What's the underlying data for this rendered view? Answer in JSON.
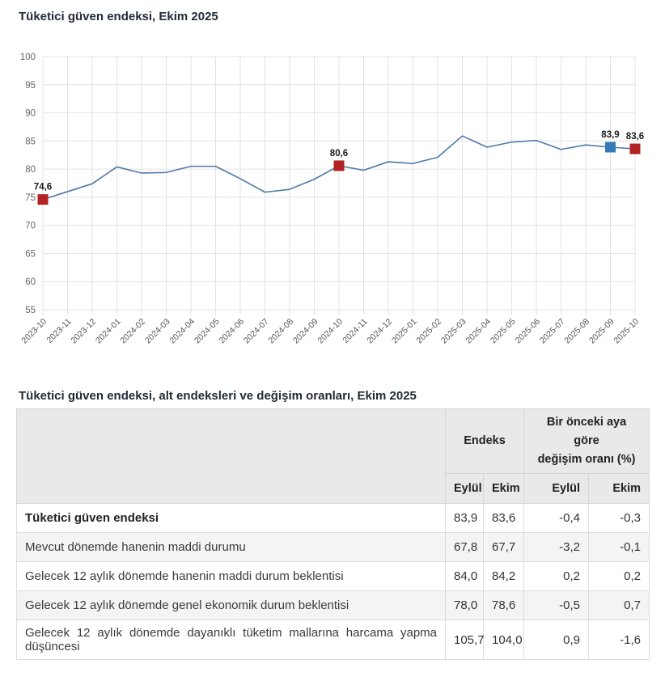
{
  "page": {
    "chart_title": "Tüketici güven endeksi, Ekim 2025",
    "table_title": "Tüketici güven endeksi, alt endeksleri ve değişim oranları, Ekim 2025"
  },
  "chart_data": {
    "type": "line",
    "title": "Tüketici güven endeksi, Ekim 2025",
    "x": [
      "2023-10",
      "2023-11",
      "2023-12",
      "2024-01",
      "2024-02",
      "2024-03",
      "2024-04",
      "2024-05",
      "2024-06",
      "2024-07",
      "2024-08",
      "2024-09",
      "2024-10",
      "2024-11",
      "2024-12",
      "2025-01",
      "2025-02",
      "2025-03",
      "2025-04",
      "2025-05",
      "2025-06",
      "2025-07",
      "2025-08",
      "2025-09",
      "2025-10"
    ],
    "series": [
      {
        "name": "Tüketici güven endeksi",
        "color": "#4e79a7",
        "values": [
          74.6,
          76.0,
          77.4,
          80.4,
          79.3,
          79.4,
          80.5,
          80.5,
          78.3,
          75.9,
          76.4,
          78.2,
          80.6,
          79.8,
          81.3,
          81.0,
          82.1,
          85.9,
          83.9,
          84.8,
          85.1,
          83.5,
          84.3,
          83.9,
          83.6
        ]
      }
    ],
    "ylim": [
      55,
      100
    ],
    "ytick_step": 5,
    "grid": true,
    "legend": false,
    "highlights": [
      {
        "x": "2023-10",
        "value": 74.6,
        "label": "74,6",
        "marker": "square",
        "color": "#b22222"
      },
      {
        "x": "2024-10",
        "value": 80.6,
        "label": "80,6",
        "marker": "square",
        "color": "#b22222"
      },
      {
        "x": "2025-09",
        "value": 83.9,
        "label": "83,9",
        "marker": "square",
        "color": "#337ab7"
      },
      {
        "x": "2025-10",
        "value": 83.6,
        "label": "83,6",
        "marker": "square",
        "color": "#b22222"
      }
    ]
  },
  "table": {
    "title": "Tüketici güven endeksi, alt endeksleri ve değişim oranları, Ekim 2025",
    "column_groups": [
      {
        "label": "Endeks",
        "span": 2
      },
      {
        "label": "Bir önceki aya\ngöre\ndeğişim oranı (%)",
        "span": 2
      }
    ],
    "sub_headers": [
      "Eylül",
      "Ekim",
      "Eylül",
      "Ekim"
    ],
    "rows": [
      {
        "label": "Tüketici güven endeksi",
        "bold": true,
        "values": [
          "83,9",
          "83,6",
          "-0,4",
          "-0,3"
        ]
      },
      {
        "label": "Mevcut dönemde hanenin maddi durumu",
        "bold": false,
        "values": [
          "67,8",
          "67,7",
          "-3,2",
          "-0,1"
        ]
      },
      {
        "label": "Gelecek 12 aylık dönemde hanenin maddi durum beklentisi",
        "bold": false,
        "values": [
          "84,0",
          "84,2",
          "0,2",
          "0,2"
        ]
      },
      {
        "label": "Gelecek 12 aylık dönemde genel ekonomik durum beklentisi",
        "bold": false,
        "values": [
          "78,0",
          "78,6",
          "-0,5",
          "0,7"
        ]
      },
      {
        "label": "Gelecek 12 aylık dönemde dayanıklı tüketim mallarına harcama yapma düşüncesi",
        "bold": false,
        "values": [
          "105,7",
          "104,0",
          "0,9",
          "-1,6"
        ]
      }
    ]
  }
}
